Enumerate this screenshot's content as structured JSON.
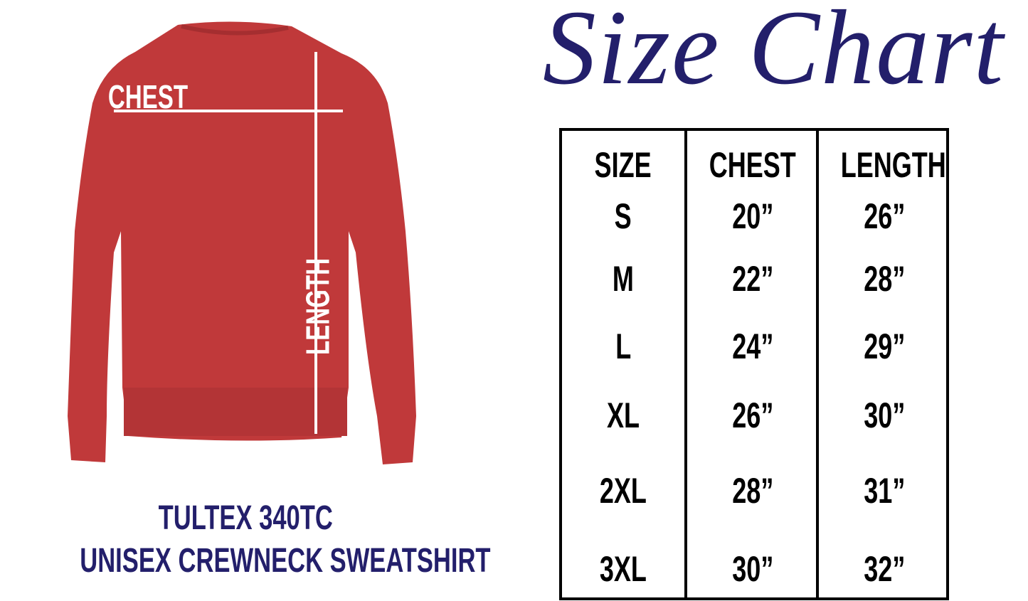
{
  "title": "Size Chart",
  "product": {
    "model": "TULTEX 340TC",
    "description": "UNISEX CREWNECK SWEATSHIRT",
    "shirt_color": "#c0393a",
    "labels": {
      "chest": "CHEST",
      "length": "LENGTH"
    }
  },
  "colors": {
    "accent": "#231f6b",
    "table_border": "#000000"
  },
  "table": {
    "headers": [
      "SIZE",
      "CHEST",
      "LENGTH"
    ],
    "rows": [
      [
        "S",
        "20”",
        "26”"
      ],
      [
        "M",
        "22”",
        "28”"
      ],
      [
        "L",
        "24”",
        "29”"
      ],
      [
        "XL",
        "26”",
        "30”"
      ],
      [
        "2XL",
        "28”",
        "31”"
      ],
      [
        "3XL",
        "30”",
        "32”"
      ]
    ]
  }
}
